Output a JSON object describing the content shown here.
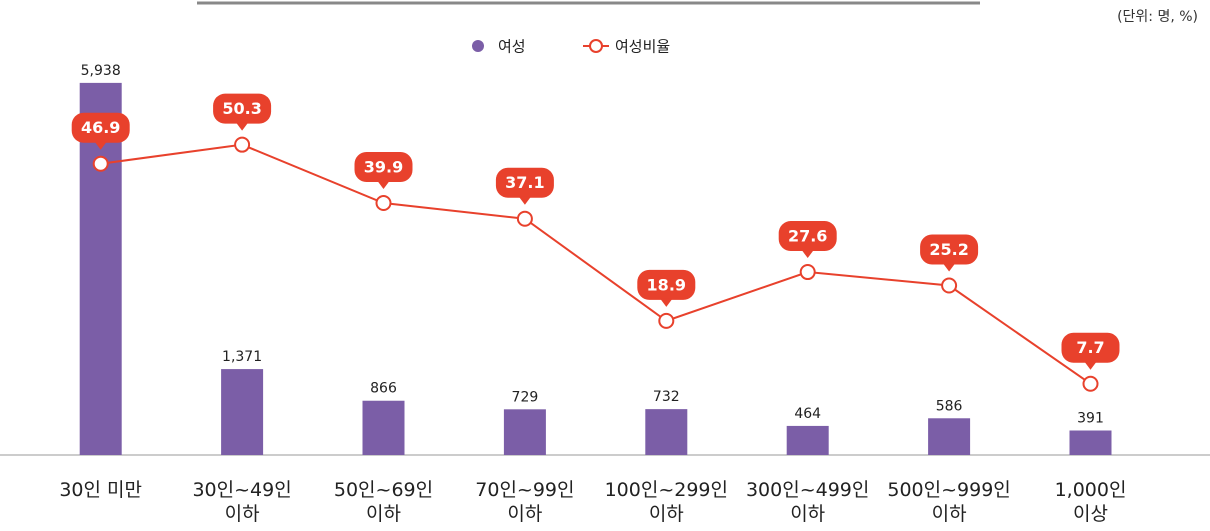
{
  "chart_data": {
    "type": "bar",
    "unit_note": "(단위: 명, %)",
    "categories": [
      "30인 미만",
      "30인~49인\n이하",
      "50인~69인\n이하",
      "70인~99인\n이하",
      "100인~299인\n이하",
      "300인~499인\n이하",
      "500인~999인\n이하",
      "1,000인\n이상"
    ],
    "series": [
      {
        "name": "여성",
        "type": "bar",
        "color": "#7b5ea7",
        "values": [
          5938,
          1371,
          866,
          729,
          732,
          464,
          586,
          391
        ],
        "value_labels": [
          "5,938",
          "1,371",
          "866",
          "729",
          "732",
          "464",
          "586",
          "391"
        ]
      },
      {
        "name": "여성비율",
        "type": "line",
        "axis": "y2",
        "color": "#e8412c",
        "values": [
          46.9,
          50.3,
          39.9,
          37.1,
          18.9,
          27.6,
          25.2,
          7.7
        ]
      }
    ],
    "ylim": [
      0,
      6000
    ],
    "y2lim": [
      -5,
      62
    ],
    "legend": "top"
  }
}
